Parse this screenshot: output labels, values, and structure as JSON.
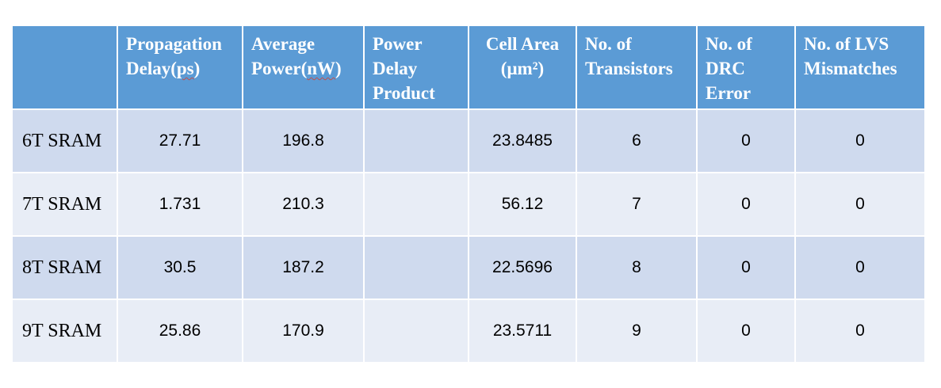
{
  "table": {
    "headers": {
      "corner": "",
      "propagation_delay_a": "Propagation",
      "propagation_delay_b": "Delay(",
      "propagation_delay_unit": "ps",
      "propagation_delay_c": ")",
      "average_power_a": "Average",
      "average_power_b": "Power(",
      "average_power_unit": "nW",
      "average_power_c": ")",
      "pdp_a": "Power",
      "pdp_b": "Delay",
      "pdp_c": "Product",
      "cell_area_a": "Cell Area",
      "cell_area_b": "(μm²)",
      "transistors_a": "No. of",
      "transistors_b": "Transistors",
      "drc_a": "No. of",
      "drc_b": "DRC",
      "drc_c": "Error",
      "lvs_a": "No. of LVS",
      "lvs_b": "Mismatches"
    },
    "rows": [
      {
        "label": "6T SRAM",
        "delay": "27.71",
        "power": "196.8",
        "pdp": "",
        "area": "23.8485",
        "transistors": "6",
        "drc": "0",
        "lvs": "0"
      },
      {
        "label": "7T SRAM",
        "delay": "1.731",
        "power": "210.3",
        "pdp": "",
        "area": "56.12",
        "transistors": "7",
        "drc": "0",
        "lvs": "0"
      },
      {
        "label": "8T SRAM",
        "delay": "30.5",
        "power": "187.2",
        "pdp": "",
        "area": "22.5696",
        "transistors": "8",
        "drc": "0",
        "lvs": "0"
      },
      {
        "label": "9T SRAM",
        "delay": "25.86",
        "power": "170.9",
        "pdp": "",
        "area": "23.5711",
        "transistors": "9",
        "drc": "0",
        "lvs": "0"
      }
    ]
  }
}
